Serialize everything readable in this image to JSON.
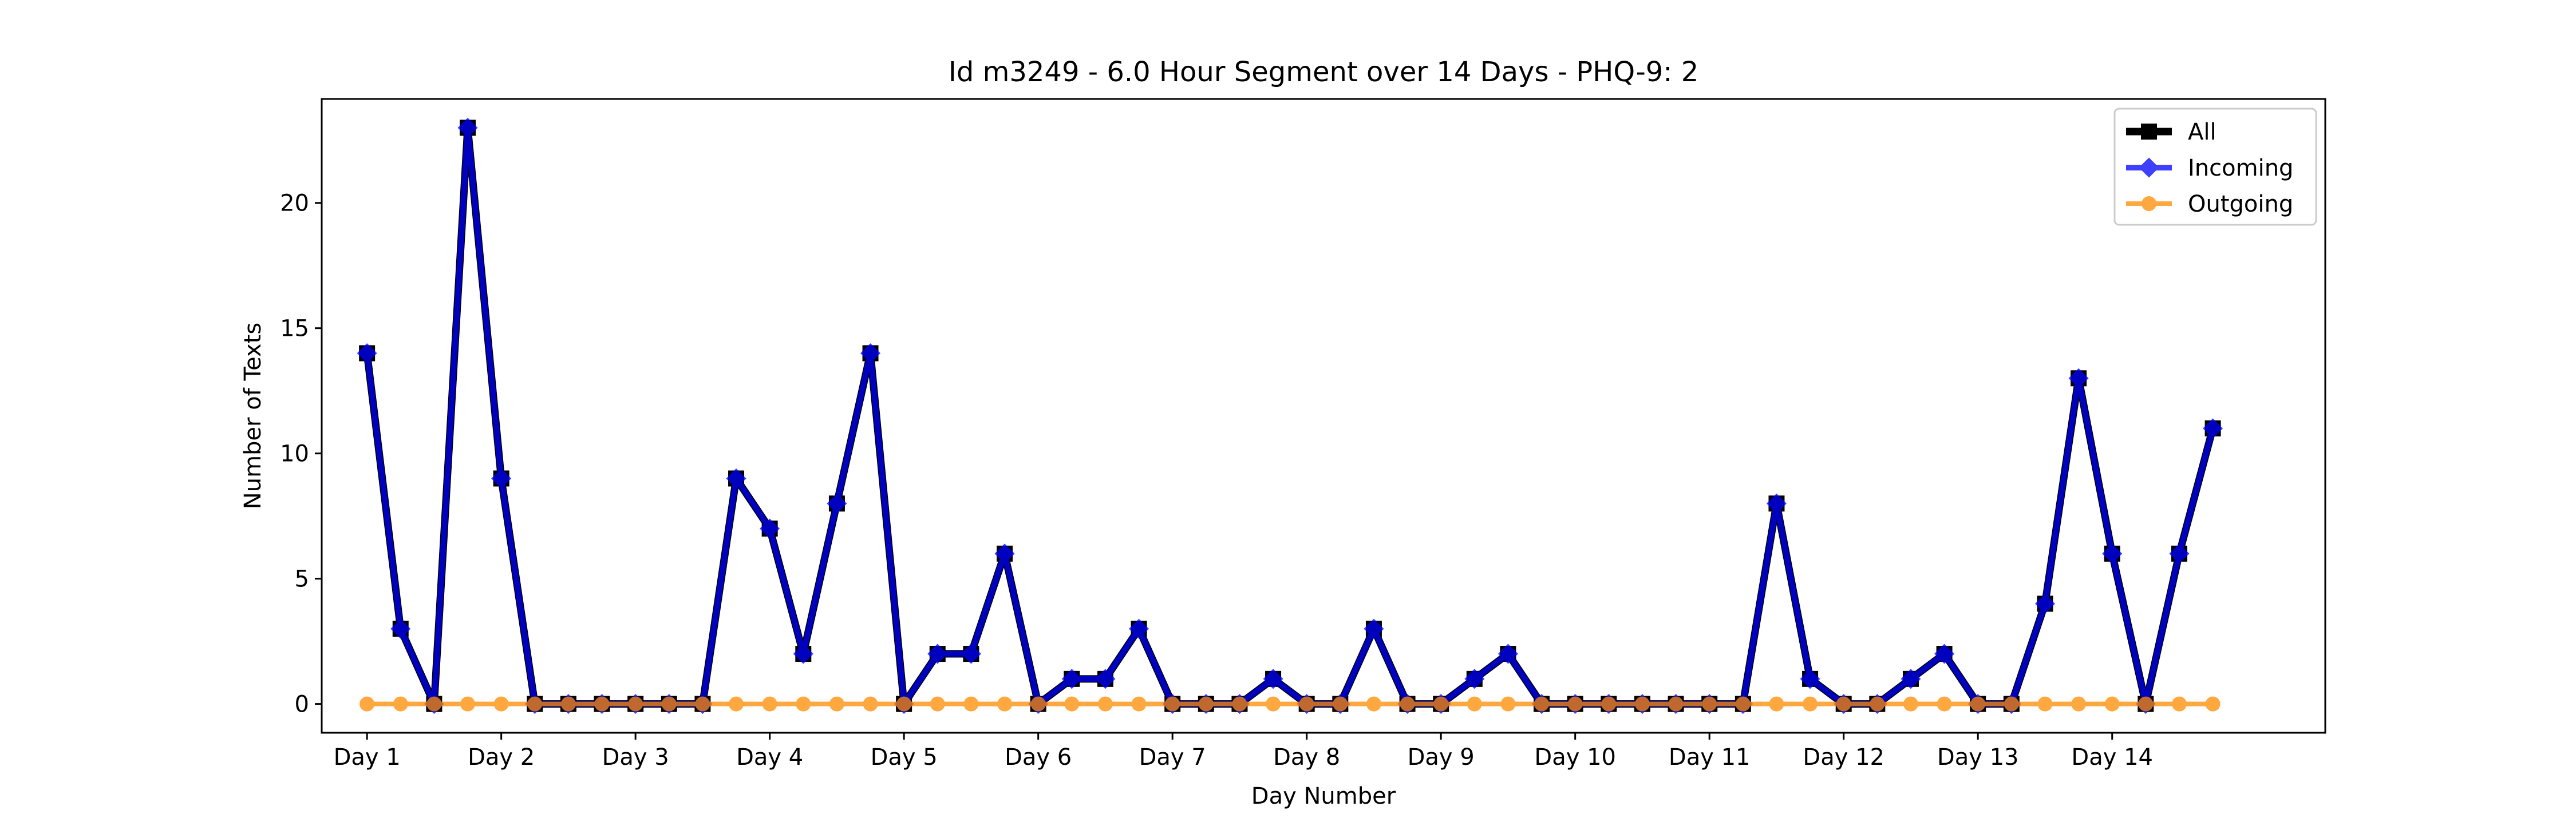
{
  "chart_data": {
    "type": "line",
    "title": "Id m3249 - 6.0 Hour Segment over 14 Days - PHQ-9: 2",
    "xlabel": "Day Number",
    "ylabel": "Number of Texts",
    "x_tick_labels": [
      "Day 1",
      "Day 2",
      "Day 3",
      "Day 4",
      "Day 5",
      "Day 6",
      "Day 7",
      "Day 8",
      "Day 9",
      "Day 10",
      "Day 11",
      "Day 12",
      "Day 13",
      "Day 14"
    ],
    "y_ticks": [
      0,
      5,
      10,
      15,
      20
    ],
    "xlim": [
      -1.35,
      58.35
    ],
    "ylim": [
      -1.15,
      24.15
    ],
    "grid": false,
    "legend_position": "top-right",
    "x": [
      0,
      1,
      2,
      3,
      4,
      5,
      6,
      7,
      8,
      9,
      10,
      11,
      12,
      13,
      14,
      15,
      16,
      17,
      18,
      19,
      20,
      21,
      22,
      23,
      24,
      25,
      26,
      27,
      28,
      29,
      30,
      31,
      32,
      33,
      34,
      35,
      36,
      37,
      38,
      39,
      40,
      41,
      42,
      43,
      44,
      45,
      46,
      47,
      48,
      49,
      50,
      51,
      52,
      53,
      54,
      55
    ],
    "series": [
      {
        "name": "All",
        "color": "#000000",
        "marker": "square",
        "values": [
          14,
          3,
          0,
          23,
          9,
          0,
          0,
          0,
          0,
          0,
          0,
          9,
          7,
          2,
          8,
          14,
          0,
          2,
          2,
          6,
          0,
          1,
          1,
          3,
          0,
          0,
          0,
          1,
          0,
          0,
          3,
          0,
          0,
          1,
          2,
          0,
          0,
          0,
          0,
          0,
          0,
          0,
          8,
          1,
          0,
          0,
          1,
          2,
          0,
          0,
          4,
          13,
          6,
          0,
          6,
          11
        ]
      },
      {
        "name": "Incoming",
        "color": "#0000ff",
        "marker": "diamond",
        "values": [
          14,
          3,
          0,
          23,
          9,
          0,
          0,
          0,
          0,
          0,
          0,
          9,
          7,
          2,
          8,
          14,
          0,
          2,
          2,
          6,
          0,
          1,
          1,
          3,
          0,
          0,
          0,
          1,
          0,
          0,
          3,
          0,
          0,
          1,
          2,
          0,
          0,
          0,
          0,
          0,
          0,
          0,
          8,
          1,
          0,
          0,
          1,
          2,
          0,
          0,
          4,
          13,
          6,
          0,
          6,
          11
        ]
      },
      {
        "name": "Outgoing",
        "color": "#ff8c00",
        "marker": "circle",
        "values": [
          0,
          0,
          0,
          0,
          0,
          0,
          0,
          0,
          0,
          0,
          0,
          0,
          0,
          0,
          0,
          0,
          0,
          0,
          0,
          0,
          0,
          0,
          0,
          0,
          0,
          0,
          0,
          0,
          0,
          0,
          0,
          0,
          0,
          0,
          0,
          0,
          0,
          0,
          0,
          0,
          0,
          0,
          0,
          0,
          0,
          0,
          0,
          0,
          0,
          0,
          0,
          0,
          0,
          0,
          0,
          0
        ]
      }
    ]
  }
}
